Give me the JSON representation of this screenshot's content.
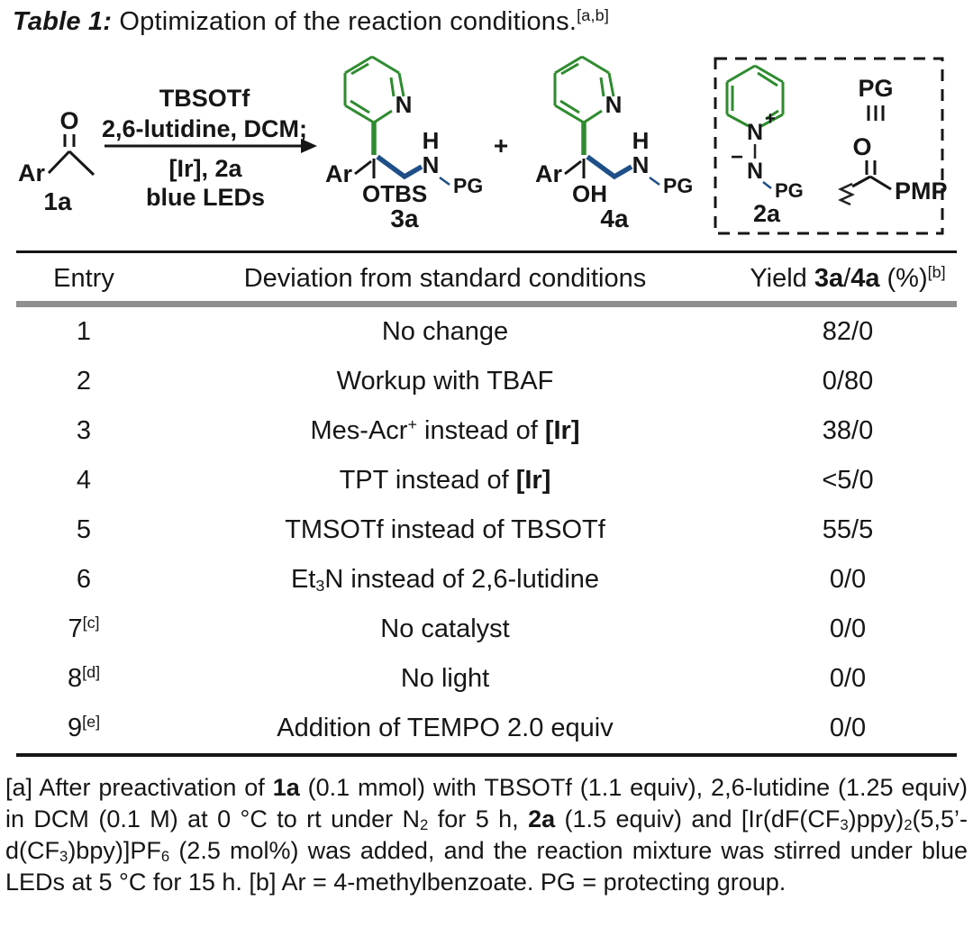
{
  "colors": {
    "green": "#2e8b2e",
    "blue": "#1e4f87",
    "blue_light": "#2f6fb5",
    "rule_gray": "#8f8f8f"
  },
  "title": {
    "segs": [
      {
        "t": "Table 1:",
        "b": 1,
        "i": 1
      },
      {
        "t": " Optimization of the reaction conditions."
      },
      {
        "t": "[a,b]",
        "sup": 1
      }
    ]
  },
  "scheme": {
    "reactant": {
      "ar": "Ar",
      "o": "O",
      "label": "1a"
    },
    "conditions": {
      "line1": "TBSOTf",
      "line2": "2,6-lutidine, DCM;",
      "line3": "[Ir], 2a",
      "line4": "blue LEDs"
    },
    "plus": "+",
    "product3": {
      "ar": "Ar",
      "ring_n": "N",
      "h": "H",
      "n": "N",
      "otbs": "OTBS",
      "pg": "PG",
      "label": "3a"
    },
    "product4": {
      "ar": "Ar",
      "ring_n": "N",
      "h": "H",
      "n": "N",
      "oh": "OH",
      "pg": "PG",
      "label": "4a"
    },
    "reagent2": {
      "ring_n": "N",
      "plus": "+",
      "minus": "−",
      "n": "N",
      "pg": "PG",
      "label": "2a"
    },
    "pg_def": {
      "pg": "PG",
      "o": "O",
      "pmp": "PMP"
    }
  },
  "table": {
    "header": [
      {
        "segs": [
          {
            "t": "Entry"
          }
        ]
      },
      {
        "segs": [
          {
            "t": "Deviation from standard conditions"
          }
        ]
      },
      {
        "segs": [
          {
            "t": "Yield "
          },
          {
            "t": "3a",
            "b": 1
          },
          {
            "t": "/"
          },
          {
            "t": "4a",
            "b": 1
          },
          {
            "t": " (%)"
          },
          {
            "t": "[b]",
            "sup": 1
          }
        ]
      }
    ],
    "rows": [
      {
        "entry": [
          {
            "t": "1"
          }
        ],
        "deviation": [
          {
            "t": "No change"
          }
        ],
        "yield": [
          {
            "t": "82/0"
          }
        ]
      },
      {
        "entry": [
          {
            "t": "2"
          }
        ],
        "deviation": [
          {
            "t": "Workup with TBAF"
          }
        ],
        "yield": [
          {
            "t": "0/80"
          }
        ]
      },
      {
        "entry": [
          {
            "t": "3"
          }
        ],
        "deviation": [
          {
            "t": "Mes-Acr"
          },
          {
            "t": "+",
            "sup": 1
          },
          {
            "t": " instead of "
          },
          {
            "t": "[Ir]",
            "b": 1
          }
        ],
        "yield": [
          {
            "t": "38/0"
          }
        ]
      },
      {
        "entry": [
          {
            "t": "4"
          }
        ],
        "deviation": [
          {
            "t": "TPT instead of "
          },
          {
            "t": "[Ir]",
            "b": 1
          }
        ],
        "yield": [
          {
            "t": "<5/0"
          }
        ]
      },
      {
        "entry": [
          {
            "t": "5"
          }
        ],
        "deviation": [
          {
            "t": "TMSOTf instead of TBSOTf"
          }
        ],
        "yield": [
          {
            "t": "55/5"
          }
        ]
      },
      {
        "entry": [
          {
            "t": "6"
          }
        ],
        "deviation": [
          {
            "t": "Et"
          },
          {
            "t": "3",
            "sub": 1
          },
          {
            "t": "N instead of 2,6-lutidine"
          }
        ],
        "yield": [
          {
            "t": "0/0"
          }
        ]
      },
      {
        "entry": [
          {
            "t": "7"
          },
          {
            "t": "[c]",
            "sup": 1
          }
        ],
        "deviation": [
          {
            "t": "No catalyst"
          }
        ],
        "yield": [
          {
            "t": "0/0"
          }
        ]
      },
      {
        "entry": [
          {
            "t": "8"
          },
          {
            "t": "[d]",
            "sup": 1
          }
        ],
        "deviation": [
          {
            "t": "No light"
          }
        ],
        "yield": [
          {
            "t": "0/0"
          }
        ]
      },
      {
        "entry": [
          {
            "t": "9"
          },
          {
            "t": "[e]",
            "sup": 1
          }
        ],
        "deviation": [
          {
            "t": "Addition of TEMPO 2.0 equiv"
          }
        ],
        "yield": [
          {
            "t": "0/0"
          }
        ]
      }
    ]
  },
  "footnote": {
    "segs": [
      {
        "t": "[a] After preactivation of "
      },
      {
        "t": "1a",
        "b": 1
      },
      {
        "t": " (0.1 mmol) with TBSOTf (1.1 equiv), 2,6-lutidine (1.25 equiv) in DCM (0.1 M) at 0 °C to rt under N"
      },
      {
        "t": "2",
        "sub": 1
      },
      {
        "t": " for 5 h, "
      },
      {
        "t": "2a",
        "b": 1
      },
      {
        "t": " (1.5 equiv) and [Ir(dF(CF"
      },
      {
        "t": "3",
        "sub": 1
      },
      {
        "t": ")ppy)"
      },
      {
        "t": "2",
        "sub": 1
      },
      {
        "t": "(5,5’-d(CF"
      },
      {
        "t": "3",
        "sub": 1
      },
      {
        "t": ")bpy)]PF"
      },
      {
        "t": "6",
        "sub": 1
      },
      {
        "t": " (2.5 mol%) was added, and the reaction mixture was stirred under blue LEDs at 5 °C for 15 h. [b] Ar = 4-methylbenzoate. PG = protecting group."
      }
    ]
  }
}
